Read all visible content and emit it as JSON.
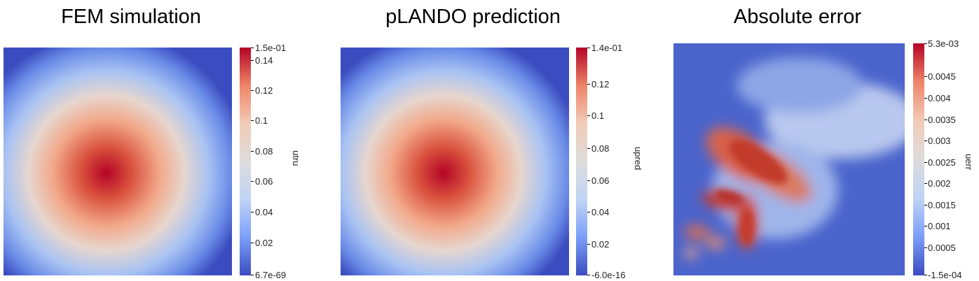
{
  "panels": [
    {
      "title": "FEM simulation",
      "variable": "utru",
      "colorbar": {
        "max_label": "1.5e-01",
        "min_label": "6.7e-69",
        "ticks": [
          "0.14",
          "0.12",
          "0.1",
          "0.08",
          "0.06",
          "0.04",
          "0.02"
        ]
      }
    },
    {
      "title": "pLANDO prediction",
      "variable": "upred",
      "colorbar": {
        "max_label": "1.4e-01",
        "min_label": "-6.0e-16",
        "ticks": [
          "0.12",
          "0.1",
          "0.08",
          "0.06",
          "0.04",
          "0.02"
        ]
      }
    },
    {
      "title": "Absolute error",
      "variable": "uerr",
      "colorbar": {
        "max_label": "5.3e-03",
        "min_label": "-1.5e-04",
        "ticks": [
          "0.0045",
          "0.004",
          "0.0035",
          "0.003",
          "0.0025",
          "0.002",
          "0.0015",
          "0.001",
          "0.0005"
        ]
      }
    }
  ],
  "colormap": [
    "#3b4cc0",
    "#7b9ff9",
    "#c0d4f5",
    "#dddcdc",
    "#f2cbb7",
    "#ee8468",
    "#b40426"
  ]
}
